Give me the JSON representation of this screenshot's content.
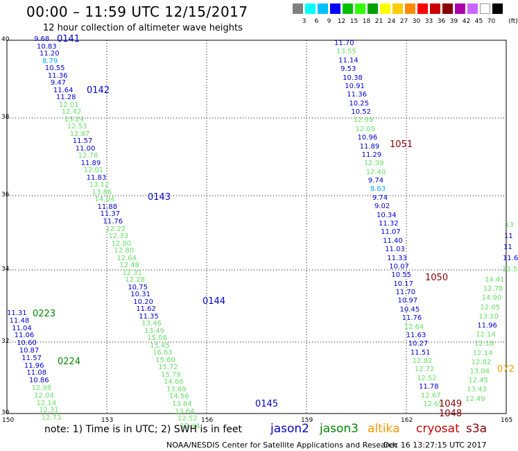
{
  "title": "00:00 – 11:59 UTC 12/15/2017",
  "subtitle": "12 hour collection of altimeter wave heights",
  "legend": {
    "unit": "(ft)",
    "colors": [
      "#808080",
      "#00ffff",
      "#00bfff",
      "#0000ff",
      "#00c000",
      "#33ff00",
      "#00a000",
      "#ffff00",
      "#ffcc00",
      "#ff8c00",
      "#ff0000",
      "#cc0000",
      "#880000",
      "#aa00aa",
      "#cc66ff",
      "#ffffff",
      "#000000"
    ],
    "labels": [
      "3",
      "6",
      "9",
      "12",
      "15",
      "18",
      "21",
      "24",
      "27",
      "30",
      "33",
      "36",
      "39",
      "42",
      "45",
      "70"
    ]
  },
  "axes": {
    "x_ticks": [
      "150",
      "153",
      "156",
      "159",
      "162",
      "165"
    ],
    "y_ticks": [
      "40",
      "38",
      "36",
      "34",
      "32",
      "30"
    ]
  },
  "note": "note: 1) Time is in UTC; 2) SWH is in feet",
  "satellites": [
    {
      "name": "jason2",
      "color": "#0000cc"
    },
    {
      "name": "jason3",
      "color": "#008800"
    },
    {
      "name": "altika",
      "color": "#ff9900"
    },
    {
      "name": "cryosat",
      "color": "#cc0000"
    },
    {
      "name": "s3a",
      "color": "#880000"
    }
  ],
  "footer": "NOAA/NESDIS Center for Satellite Applications and Research",
  "timestamp": "Dec 16 13:27:15 UTC 2017",
  "colors": {
    "blue": "#0000cc",
    "green": "#66e066",
    "cyan": "#00aaff",
    "darkgreen": "#008800",
    "darkred": "#880000",
    "orange": "#ff9900"
  },
  "track_labels": [
    {
      "text": "0141",
      "c": "blue"
    },
    {
      "text": "0142",
      "c": "blue"
    },
    {
      "text": "0143",
      "c": "blue"
    },
    {
      "text": "0144",
      "c": "blue"
    },
    {
      "text": "0145",
      "c": "blue"
    },
    {
      "text": "0223",
      "c": "darkgreen"
    },
    {
      "text": "0224",
      "c": "darkgreen"
    },
    {
      "text": "1051",
      "c": "darkred"
    },
    {
      "text": "1050",
      "c": "darkred"
    },
    {
      "text": "1049",
      "c": "darkred"
    },
    {
      "text": "1048",
      "c": "darkred"
    },
    {
      "text": "072",
      "c": "orange"
    }
  ],
  "tracks": [
    {
      "id": "A",
      "values": [
        [
          "9.68",
          "blue"
        ],
        [
          "10.83",
          "blue"
        ],
        [
          "11.20",
          "blue"
        ],
        [
          "8.79",
          "cyan"
        ],
        [
          "10.55",
          "blue"
        ],
        [
          "11.36",
          "blue"
        ],
        [
          "9.47",
          "blue"
        ],
        [
          "11.64",
          "blue"
        ],
        [
          "11.28",
          "blue"
        ],
        [
          "12.01",
          "green"
        ],
        [
          "12.42",
          "green"
        ],
        [
          "13.24",
          "green"
        ],
        [
          "12.53",
          "green"
        ],
        [
          "12.87",
          "green"
        ],
        [
          "11.57",
          "blue"
        ],
        [
          "11.00",
          "blue"
        ],
        [
          "12.78",
          "green"
        ],
        [
          "11.89",
          "blue"
        ],
        [
          "12.01",
          "green"
        ],
        [
          "11.83",
          "blue"
        ],
        [
          "13.12",
          "green"
        ],
        [
          "13.86",
          "green"
        ],
        [
          "14.04",
          "green"
        ],
        [
          "11.88",
          "blue"
        ],
        [
          "11.37",
          "blue"
        ],
        [
          "11.76",
          "blue"
        ],
        [
          "12.22",
          "green"
        ],
        [
          "12.33",
          "green"
        ],
        [
          "12.80",
          "green"
        ],
        [
          "12.80",
          "green"
        ],
        [
          "12.64",
          "green"
        ],
        [
          "12.48",
          "green"
        ],
        [
          "12.31",
          "green"
        ],
        [
          "12.28",
          "green"
        ],
        [
          "10.75",
          "blue"
        ],
        [
          "10.31",
          "blue"
        ],
        [
          "10.20",
          "blue"
        ],
        [
          "11.62",
          "blue"
        ],
        [
          "11.35",
          "blue"
        ],
        [
          "13.46",
          "green"
        ],
        [
          "13.49",
          "green"
        ],
        [
          "15.08",
          "green"
        ],
        [
          "15.45",
          "green"
        ],
        [
          "16.63",
          "green"
        ],
        [
          "15.60",
          "green"
        ],
        [
          "15.72",
          "green"
        ],
        [
          "15.79",
          "green"
        ],
        [
          "14.66",
          "green"
        ],
        [
          "13.69",
          "green"
        ],
        [
          "14.56",
          "green"
        ],
        [
          "13.84",
          "green"
        ],
        [
          "13.64",
          "green"
        ],
        [
          "12.52",
          "green"
        ],
        [
          "12.44",
          "green"
        ]
      ]
    },
    {
      "id": "B",
      "values": [
        [
          "11.31",
          "blue"
        ],
        [
          "11.48",
          "blue"
        ],
        [
          "11.04",
          "blue"
        ],
        [
          "11.06",
          "blue"
        ],
        [
          "10.60",
          "blue"
        ],
        [
          "10.87",
          "blue"
        ],
        [
          "11.57",
          "blue"
        ],
        [
          "11.96",
          "blue"
        ],
        [
          "11.08",
          "blue"
        ],
        [
          "10.86",
          "blue"
        ],
        [
          "12.98",
          "green"
        ],
        [
          "12.04",
          "green"
        ],
        [
          "12.14",
          "green"
        ],
        [
          "12.31",
          "green"
        ],
        [
          "12.73",
          "green"
        ]
      ]
    },
    {
      "id": "C",
      "values": [
        [
          "11.70",
          "blue"
        ],
        [
          "13.55",
          "green"
        ],
        [
          "11.14",
          "blue"
        ],
        [
          "9.53",
          "blue"
        ],
        [
          "10.38",
          "blue"
        ],
        [
          "10.91",
          "blue"
        ],
        [
          "11.36",
          "blue"
        ],
        [
          "10.25",
          "blue"
        ],
        [
          "10.52",
          "blue"
        ],
        [
          "12.99",
          "green"
        ],
        [
          "12.05",
          "green"
        ],
        [
          "10.96",
          "blue"
        ],
        [
          "11.89",
          "blue"
        ],
        [
          "11.29",
          "blue"
        ],
        [
          "12.39",
          "green"
        ],
        [
          "12.40",
          "green"
        ],
        [
          "9.74",
          "blue"
        ],
        [
          "8.63",
          "cyan"
        ],
        [
          "9.74",
          "blue"
        ],
        [
          "9.02",
          "blue"
        ],
        [
          "10.34",
          "blue"
        ],
        [
          "11.32",
          "blue"
        ],
        [
          "11.07",
          "blue"
        ],
        [
          "11.40",
          "blue"
        ],
        [
          "11.03",
          "blue"
        ],
        [
          "11.33",
          "blue"
        ],
        [
          "10.07",
          "blue"
        ],
        [
          "10.55",
          "blue"
        ],
        [
          "10.17",
          "blue"
        ],
        [
          "11.70",
          "blue"
        ],
        [
          "10.97",
          "blue"
        ],
        [
          "10.45",
          "blue"
        ],
        [
          "11.76",
          "blue"
        ],
        [
          "12.64",
          "green"
        ],
        [
          "11.63",
          "blue"
        ],
        [
          "10.27",
          "blue"
        ],
        [
          "11.51",
          "blue"
        ],
        [
          "12.82",
          "green"
        ],
        [
          "12.72",
          "green"
        ],
        [
          "12.52",
          "green"
        ],
        [
          "11.78",
          "blue"
        ],
        [
          "12.67",
          "green"
        ],
        [
          "12.69",
          "green"
        ]
      ]
    },
    {
      "id": "D",
      "values": [
        [
          "14.41",
          "green"
        ],
        [
          "12.78",
          "green"
        ],
        [
          "14.90",
          "green"
        ],
        [
          "12.05",
          "green"
        ],
        [
          "13.10",
          "green"
        ],
        [
          "11.96",
          "blue"
        ],
        [
          "12.14",
          "green"
        ],
        [
          "12.18",
          "green"
        ],
        [
          "12.14",
          "green"
        ],
        [
          "12.82",
          "green"
        ],
        [
          "13.04",
          "green"
        ],
        [
          "12.45",
          "green"
        ],
        [
          "13.43",
          "green"
        ],
        [
          "12.49",
          "green"
        ]
      ]
    },
    {
      "id": "E",
      "values": [
        [
          "13",
          "green"
        ],
        [
          "11",
          "blue"
        ],
        [
          "11",
          "blue"
        ],
        [
          "11.6",
          "blue"
        ],
        [
          "13.5",
          "green"
        ]
      ]
    }
  ]
}
